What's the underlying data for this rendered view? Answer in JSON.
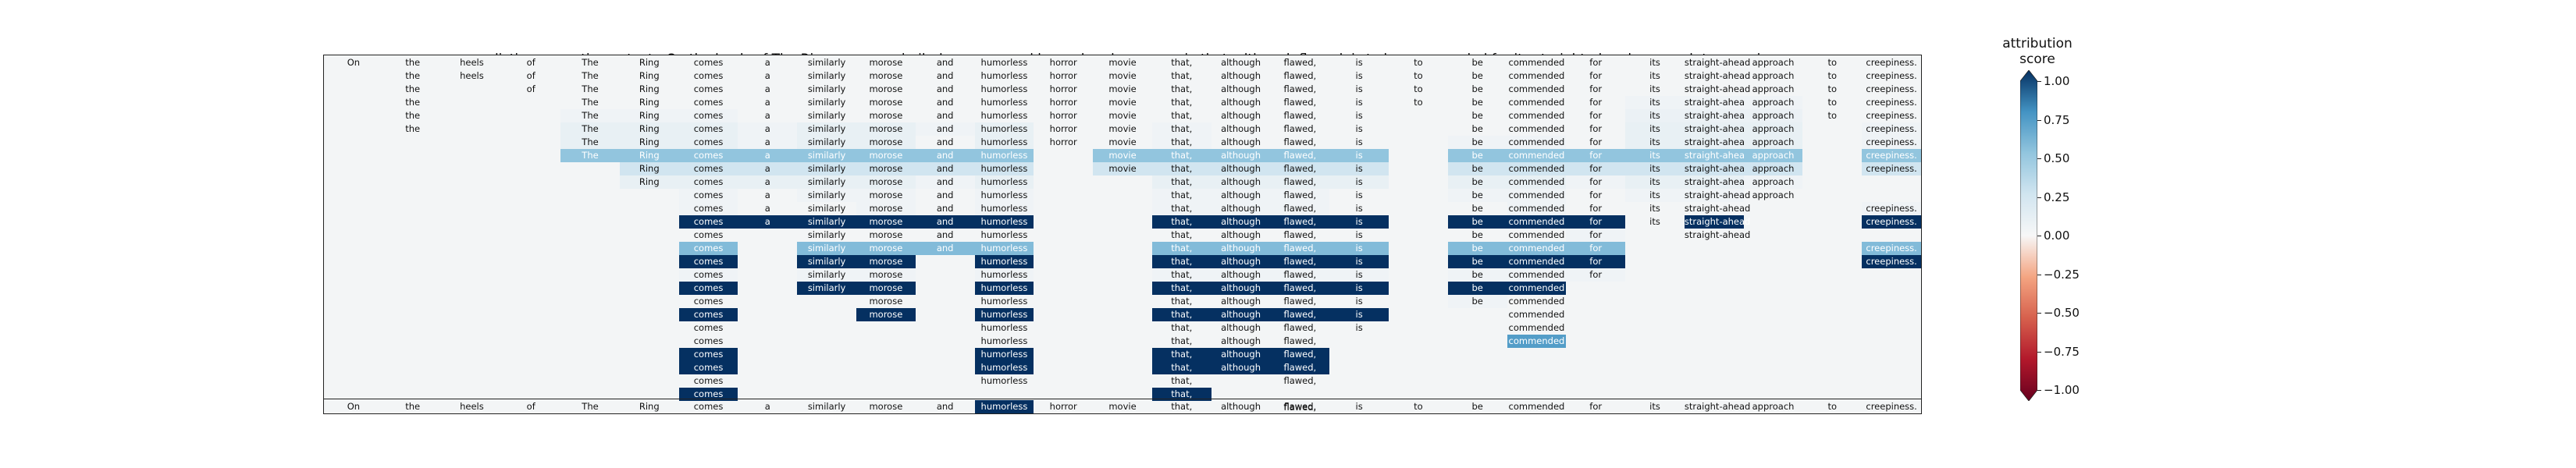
{
  "header": {
    "prediction_label": "prediction:",
    "prediction_value": "negative",
    "text_label": "text:",
    "text_value": "On the heels of The Ring comes a similarly morose and humorless horror movie that, although flawed, is to be commended for its straight-ahead approach to creepiness."
  },
  "colorbar": {
    "title": "attribution score",
    "ticks": [
      "1.00",
      "0.75",
      "0.50",
      "0.25",
      "0.00",
      "−0.25",
      "−0.50",
      "−0.75",
      "−1.00"
    ],
    "colors": {
      "max": "#053061",
      "mid": "#f7f7f7",
      "min": "#67001f"
    }
  },
  "chart_data": {
    "type": "heatmap",
    "title": "prediction:  negative     text:  On the heels of The Ring comes a similarly morose and humorless horror movie that, although flawed, is to be commended for its straight-ahead approach to creepiness.",
    "colorbar_label": "attribution score",
    "vmin": -1.0,
    "vmax": 1.0,
    "tokens": [
      "On",
      "the",
      "heels",
      "of",
      "The",
      "Ring",
      "comes",
      "a",
      "similarly",
      "morose",
      "and",
      "humorless",
      "horror",
      "movie",
      "that,",
      "although",
      "flawed,",
      "is",
      "to",
      "be",
      "commended",
      "for",
      "its",
      "straight-ahead",
      "approach",
      "to",
      "creepiness."
    ],
    "rows": [
      {
        "present": [
          0,
          1,
          2,
          3,
          4,
          5,
          6,
          7,
          8,
          9,
          10,
          11,
          12,
          13,
          14,
          15,
          16,
          17,
          18,
          19,
          20,
          21,
          22,
          23,
          24,
          25,
          26
        ],
        "scores": {}
      },
      {
        "present": [
          1,
          2,
          3,
          4,
          5,
          6,
          7,
          8,
          9,
          10,
          11,
          12,
          13,
          14,
          15,
          16,
          17,
          18,
          19,
          20,
          21,
          22,
          23,
          24,
          25,
          26
        ],
        "scores": {}
      },
      {
        "present": [
          1,
          3,
          4,
          5,
          6,
          7,
          8,
          9,
          10,
          11,
          12,
          13,
          14,
          15,
          16,
          17,
          18,
          19,
          20,
          21,
          22,
          23,
          24,
          25,
          26
        ],
        "scores": {}
      },
      {
        "present": [
          1,
          4,
          5,
          6,
          7,
          8,
          9,
          10,
          11,
          12,
          13,
          14,
          15,
          16,
          17,
          18,
          19,
          20,
          21,
          22,
          23,
          24,
          25,
          26
        ],
        "scores": {
          "22": 0.05,
          "23": 0.05,
          "24": 0.05
        }
      },
      {
        "present": [
          1,
          4,
          5,
          6,
          7,
          8,
          9,
          10,
          11,
          12,
          13,
          14,
          15,
          16,
          17,
          19,
          20,
          21,
          22,
          23,
          24,
          25,
          26
        ],
        "scores": {
          "4": 0.05,
          "5": 0.05,
          "6": 0.05,
          "22": 0.08,
          "23": 0.08,
          "24": 0.08
        }
      },
      {
        "present": [
          1,
          4,
          5,
          6,
          7,
          8,
          9,
          10,
          11,
          12,
          13,
          14,
          15,
          16,
          17,
          19,
          20,
          21,
          22,
          23,
          24,
          26
        ],
        "scores": {
          "4": 0.1,
          "5": 0.1,
          "6": 0.1,
          "7": 0.05,
          "8": 0.1,
          "9": 0.1,
          "10": 0.05,
          "11": 0.1,
          "14": 0.05,
          "22": 0.1,
          "23": 0.1,
          "24": 0.1,
          "26": 0.05
        }
      },
      {
        "present": [
          4,
          5,
          6,
          7,
          8,
          9,
          10,
          11,
          12,
          13,
          14,
          15,
          16,
          17,
          19,
          20,
          21,
          22,
          23,
          24,
          26
        ],
        "scores": {
          "4": 0.1,
          "5": 0.1,
          "6": 0.1,
          "7": 0.05,
          "8": 0.1,
          "9": 0.1,
          "11": 0.1,
          "14": 0.05,
          "19": 0.05,
          "20": 0.05,
          "22": 0.1,
          "23": 0.1,
          "24": 0.1,
          "26": 0.05
        }
      },
      {
        "present": [
          4,
          5,
          6,
          7,
          8,
          9,
          10,
          11,
          13,
          14,
          15,
          16,
          17,
          19,
          20,
          21,
          22,
          23,
          24,
          26
        ],
        "scores": {
          "4": 0.5,
          "5": 0.5,
          "6": 0.5,
          "7": 0.5,
          "8": 0.5,
          "9": 0.5,
          "10": 0.5,
          "11": 0.5,
          "13": 0.5,
          "14": 0.5,
          "15": 0.5,
          "16": 0.5,
          "17": 0.5,
          "19": 0.5,
          "20": 0.5,
          "21": 0.5,
          "22": 0.5,
          "23": 0.5,
          "24": 0.5,
          "26": 0.5
        }
      },
      {
        "present": [
          5,
          6,
          7,
          8,
          9,
          10,
          11,
          13,
          14,
          15,
          16,
          17,
          19,
          20,
          21,
          22,
          23,
          24,
          26
        ],
        "scores": {
          "5": 0.25,
          "6": 0.25,
          "7": 0.25,
          "8": 0.25,
          "9": 0.25,
          "10": 0.25,
          "11": 0.25,
          "13": 0.25,
          "14": 0.25,
          "15": 0.25,
          "16": 0.25,
          "17": 0.25,
          "19": 0.25,
          "20": 0.25,
          "21": 0.25,
          "22": 0.25,
          "23": 0.25,
          "24": 0.25,
          "26": 0.25
        }
      },
      {
        "present": [
          5,
          6,
          7,
          8,
          9,
          10,
          11,
          14,
          15,
          16,
          17,
          19,
          20,
          21,
          22,
          23,
          24
        ],
        "scores": {
          "5": 0.1,
          "6": 0.1,
          "7": 0.1,
          "8": 0.1,
          "9": 0.1,
          "10": 0.05,
          "11": 0.1,
          "14": 0.1,
          "15": 0.1,
          "16": 0.1,
          "17": 0.1,
          "19": 0.1,
          "20": 0.1,
          "21": 0.05,
          "22": 0.1,
          "23": 0.1,
          "24": 0.05
        }
      },
      {
        "present": [
          6,
          7,
          8,
          9,
          10,
          11,
          14,
          15,
          16,
          17,
          19,
          20,
          21,
          22,
          23,
          24
        ],
        "scores": {
          "6": 0.05,
          "8": 0.05,
          "9": 0.05,
          "11": 0.05,
          "14": 0.05,
          "15": 0.05,
          "16": 0.05,
          "19": 0.05,
          "20": 0.05,
          "22": 0.05,
          "23": 0.05
        }
      },
      {
        "present": [
          6,
          7,
          8,
          9,
          10,
          11,
          14,
          15,
          16,
          17,
          19,
          20,
          21,
          22,
          23,
          26
        ],
        "scores": {
          "6": 0.05,
          "9": 0.05,
          "11": 0.05,
          "14": 0.05,
          "15": 0.05,
          "16": 0.05,
          "20": 0.05,
          "26": 0.05
        }
      },
      {
        "present": [
          6,
          7,
          8,
          9,
          10,
          11,
          14,
          15,
          16,
          17,
          19,
          20,
          21,
          22,
          23,
          26
        ],
        "scores": {
          "6": 1.0,
          "7": 1.0,
          "8": 1.0,
          "9": 1.0,
          "10": 1.0,
          "11": 1.0,
          "14": 1.0,
          "15": 1.0,
          "16": 1.0,
          "17": 1.0,
          "19": 1.0,
          "20": 1.0,
          "21": 1.0,
          "23": 1.0,
          "26": 1.0
        }
      },
      {
        "present": [
          6,
          8,
          9,
          10,
          11,
          14,
          15,
          16,
          17,
          19,
          20,
          21,
          23
        ],
        "scores": {
          "21": 0.05
        }
      },
      {
        "present": [
          6,
          8,
          9,
          10,
          11,
          14,
          15,
          16,
          17,
          19,
          20,
          21,
          26
        ],
        "scores": {
          "6": 0.55,
          "8": 0.55,
          "9": 0.55,
          "10": 0.55,
          "11": 0.55,
          "14": 0.55,
          "15": 0.55,
          "16": 0.55,
          "17": 0.55,
          "19": 0.55,
          "20": 0.55,
          "21": 0.55,
          "26": 0.55
        }
      },
      {
        "present": [
          6,
          8,
          9,
          11,
          14,
          15,
          16,
          17,
          19,
          20,
          21,
          26
        ],
        "scores": {
          "6": 1.0,
          "8": 1.0,
          "9": 1.0,
          "11": 1.0,
          "14": 1.0,
          "15": 1.0,
          "16": 1.0,
          "17": 1.0,
          "19": 1.0,
          "20": 1.0,
          "21": 1.0,
          "26": 1.0
        }
      },
      {
        "present": [
          6,
          8,
          9,
          11,
          14,
          15,
          16,
          17,
          19,
          20,
          21
        ],
        "scores": {
          "6": 0.05,
          "8": 0.05,
          "9": 0.05,
          "11": 0.05,
          "14": 0.05,
          "15": 0.05,
          "16": 0.05,
          "17": 0.05,
          "19": 0.05,
          "20": 0.05,
          "21": 0.05
        }
      },
      {
        "present": [
          6,
          8,
          9,
          11,
          14,
          15,
          16,
          17,
          19,
          20
        ],
        "scores": {
          "6": 1.0,
          "8": 1.0,
          "9": 1.0,
          "11": 1.0,
          "14": 1.0,
          "15": 1.0,
          "16": 1.0,
          "17": 1.0,
          "19": 1.0,
          "20": 1.0
        }
      },
      {
        "present": [
          6,
          9,
          11,
          14,
          15,
          16,
          17,
          19,
          20
        ],
        "scores": {
          "19": 0.05
        }
      },
      {
        "present": [
          6,
          9,
          11,
          14,
          15,
          16,
          17,
          20
        ],
        "scores": {
          "6": 1.0,
          "9": 1.0,
          "11": 1.0,
          "14": 1.0,
          "15": 1.0,
          "16": 1.0,
          "17": 1.0
        }
      },
      {
        "present": [
          6,
          11,
          14,
          15,
          16,
          17,
          20
        ],
        "scores": {}
      },
      {
        "present": [
          6,
          11,
          14,
          15,
          16,
          20
        ],
        "scores": {
          "20": 0.7
        }
      },
      {
        "present": [
          6,
          11,
          14,
          15,
          16
        ],
        "scores": {
          "6": 1.0,
          "11": 1.0,
          "14": 1.0,
          "15": 1.0,
          "16": 1.0
        }
      },
      {
        "present": [
          6,
          11,
          14,
          15,
          16
        ],
        "scores": {
          "6": 1.0,
          "11": 1.0,
          "14": 1.0,
          "15": 1.0,
          "16": 1.0
        }
      },
      {
        "present": [
          6,
          11,
          14,
          16
        ],
        "scores": {}
      },
      {
        "present": [
          6,
          14
        ],
        "scores": {
          "6": 1.0,
          "14": 1.0
        }
      },
      {
        "present": [
          11,
          16
        ],
        "scores": {}
      },
      {
        "present": [
          0,
          1,
          2,
          3,
          4,
          5,
          6,
          7,
          8,
          9,
          10,
          11,
          12,
          13,
          14,
          15,
          16,
          17,
          18,
          19,
          20,
          21,
          22,
          23,
          24,
          25,
          26
        ],
        "scores": {
          "11": 1.0
        }
      }
    ]
  }
}
